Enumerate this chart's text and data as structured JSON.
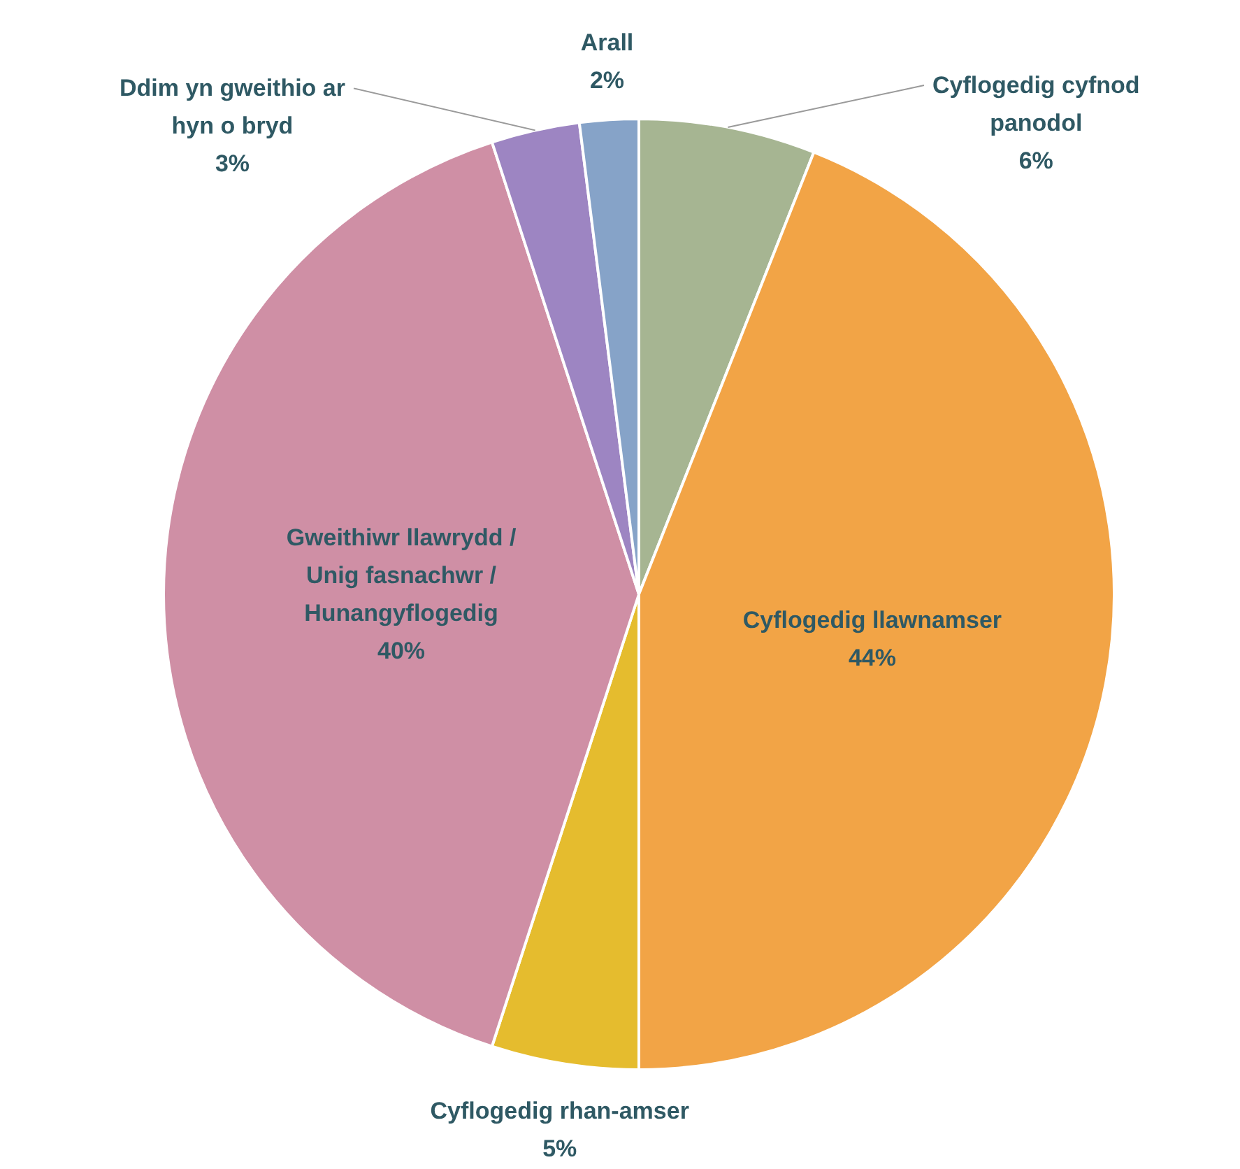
{
  "chart_data": {
    "type": "pie",
    "categories": [
      "Cyflogedig cyfnod panodol",
      "Cyflogedig llawnamser",
      "Cyflogedig rhan-amser",
      "Gweithiwr llawrydd / Unig fasnachwr / Hunangyflogedig",
      "Ddim yn gweithio ar hyn o bryd",
      "Arall"
    ],
    "values": [
      6,
      44,
      5,
      40,
      3,
      2
    ],
    "colors": [
      "#a6b592",
      "#f2a446",
      "#e5bc2e",
      "#cf8fa5",
      "#9d85c2",
      "#86a3c8"
    ],
    "value_labels": [
      "6%",
      "44%",
      "5%",
      "40%",
      "3%",
      "2%"
    ]
  }
}
